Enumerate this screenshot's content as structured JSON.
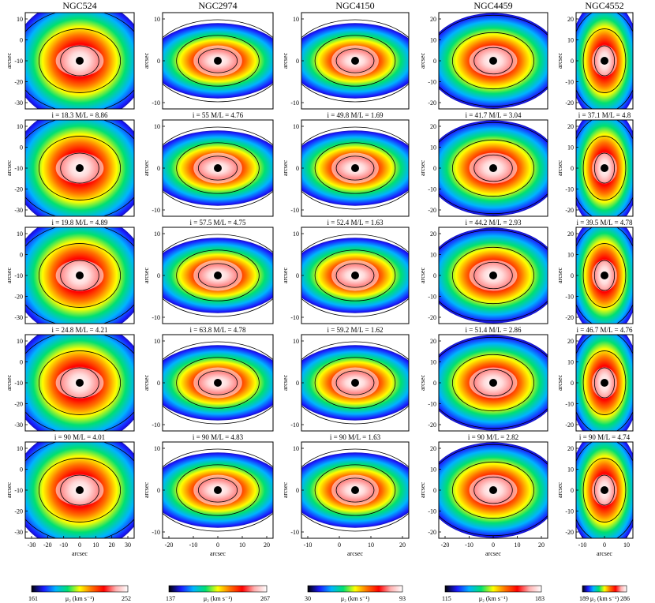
{
  "galaxies": [
    {
      "name": "NGC524",
      "x_ticks": [
        "-30",
        "-20",
        "-10",
        "0",
        "10",
        "20",
        "30"
      ],
      "y_ticks": [
        "10",
        "0",
        "-10",
        "-20",
        "-30"
      ],
      "colorbar": {
        "min": "161",
        "max": "252"
      },
      "row_labels": [
        "i = 18.3  M/L = 8.86",
        "i = 19.8  M/L = 4.89",
        "i = 24.8  M/L = 4.21",
        "i = 90  M/L = 4.01"
      ]
    },
    {
      "name": "NGC2974",
      "x_ticks": [
        "-20",
        "-10",
        "0",
        "10",
        "20"
      ],
      "y_ticks": [
        "10",
        "0",
        "-10"
      ],
      "colorbar": {
        "min": "137",
        "max": "267"
      },
      "row_labels": [
        "i = 55  M/L = 4.76",
        "i = 57.5  M/L = 4.75",
        "i = 63.8  M/L = 4.78",
        "i = 90  M/L = 4.83"
      ]
    },
    {
      "name": "NGC4150",
      "x_ticks": [
        "-10",
        "0",
        "10",
        "20"
      ],
      "y_ticks": [
        "10",
        "0",
        "-10"
      ],
      "colorbar": {
        "min": "30",
        "max": "93"
      },
      "row_labels": [
        "i = 49.8  M/L = 1.69",
        "i = 52.4  M/L = 1.63",
        "i = 59.2  M/L = 1.62",
        "i = 90  M/L = 1.63"
      ]
    },
    {
      "name": "NGC4459",
      "x_ticks": [
        "-20",
        "-10",
        "0",
        "10",
        "20"
      ],
      "y_ticks": [
        "20",
        "10",
        "0",
        "-10",
        "-20"
      ],
      "colorbar": {
        "min": "115",
        "max": "183"
      },
      "row_labels": [
        "i = 41.7  M/L = 3.04",
        "i = 44.2  M/L = 2.93",
        "i = 51.4  M/L = 2.86",
        "i = 90  M/L = 2.82"
      ]
    },
    {
      "name": "NGC4552",
      "x_ticks": [
        "-10",
        "0",
        "10"
      ],
      "y_ticks": [
        "20",
        "10",
        "0",
        "-10",
        "-20"
      ],
      "colorbar": {
        "min": "189",
        "max": "286"
      },
      "row_labels": [
        "i = 37.1  M/L = 4.8",
        "i = 39.5  M/L = 4.78",
        "i = 46.7  M/L = 4.76",
        "i = 90  M/L = 4.74"
      ]
    }
  ],
  "axis_label": "arcsec",
  "colorbar_label": "μ₂ (km s⁻¹)",
  "colormap": [
    "#000000",
    "#1a1aff",
    "#00b4ff",
    "#00e070",
    "#ffff00",
    "#ff7000",
    "#ff0000",
    "#ffb0b0",
    "#ffffff"
  ]
}
